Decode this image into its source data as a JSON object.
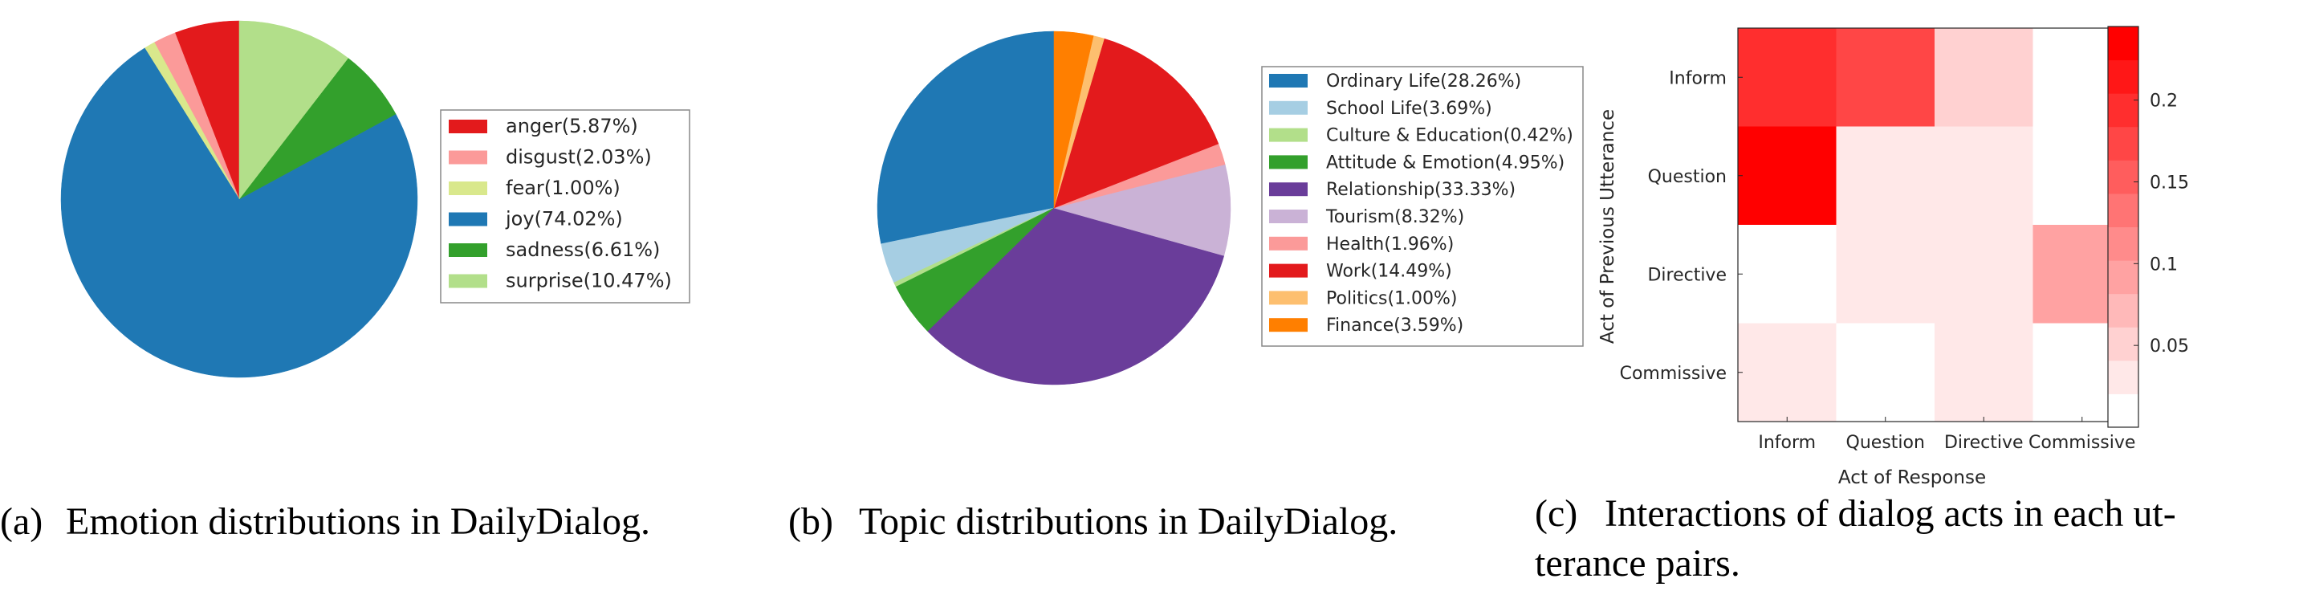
{
  "chart_data": [
    {
      "type": "pie",
      "title": "",
      "caption_label": "(a)",
      "caption": "Emotion distributions in DailyDialog.",
      "series": [
        {
          "name": "anger(5.87%)",
          "value": 5.87,
          "color": "#e31a1c"
        },
        {
          "name": "disgust(2.03%)",
          "value": 2.03,
          "color": "#fb9a99"
        },
        {
          "name": "fear(1.00%)",
          "value": 1.0,
          "color": "#d9e88c"
        },
        {
          "name": "joy(74.02%)",
          "value": 74.02,
          "color": "#1f78b4"
        },
        {
          "name": "sadness(6.61%)",
          "value": 6.61,
          "color": "#33a02c"
        },
        {
          "name": "surprise(10.47%)",
          "value": 10.47,
          "color": "#b2df8a"
        }
      ]
    },
    {
      "type": "pie",
      "title": "",
      "caption_label": "(b)",
      "caption": "Topic distributions in DailyDialog.",
      "series": [
        {
          "name": "Ordinary Life(28.26%)",
          "value": 28.26,
          "color": "#1f78b4"
        },
        {
          "name": "School Life(3.69%)",
          "value": 3.69,
          "color": "#a6cee3"
        },
        {
          "name": "Culture & Education(0.42%)",
          "value": 0.42,
          "color": "#b2df8a"
        },
        {
          "name": "Attitude & Emotion(4.95%)",
          "value": 4.95,
          "color": "#33a02c"
        },
        {
          "name": "Relationship(33.33%)",
          "value": 33.33,
          "color": "#6a3d9a"
        },
        {
          "name": "Tourism(8.32%)",
          "value": 8.32,
          "color": "#cab2d6"
        },
        {
          "name": "Health(1.96%)",
          "value": 1.96,
          "color": "#fb9a99"
        },
        {
          "name": "Work(14.49%)",
          "value": 14.49,
          "color": "#e31a1c"
        },
        {
          "name": "Politics(1.00%)",
          "value": 1.0,
          "color": "#fdbf6f"
        },
        {
          "name": "Finance(3.59%)",
          "value": 3.59,
          "color": "#ff7f00"
        }
      ]
    },
    {
      "type": "heatmap",
      "title": "",
      "caption_label": "(c)",
      "caption_lines": [
        "Interactions of dialog acts in each ut-",
        "terance pairs."
      ],
      "xlabel": "Act of Response",
      "ylabel": "Act of Previous Utterance",
      "x_categories": [
        "Inform",
        "Question",
        "Directive",
        "Commissive"
      ],
      "y_categories": [
        "Inform",
        "Question",
        "Directive",
        "Commissive"
      ],
      "values": [
        [
          0.19,
          0.17,
          0.06,
          0.0
        ],
        [
          0.24,
          0.03,
          0.03,
          0.0
        ],
        [
          0.0,
          0.03,
          0.03,
          0.1
        ],
        [
          0.03,
          0.0,
          0.03,
          0.0
        ]
      ],
      "colorbar": {
        "min": 0.0,
        "max": 0.245,
        "levels": 12,
        "ticks": [
          0.05,
          0.1,
          0.15,
          0.2
        ],
        "tick_labels": [
          "0.05",
          "0.1",
          "0.15",
          "0.2"
        ]
      }
    }
  ]
}
